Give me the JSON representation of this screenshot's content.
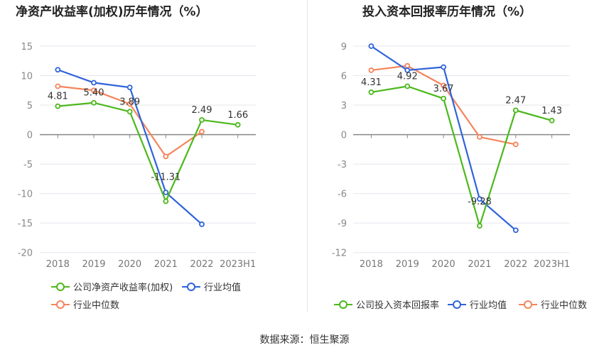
{
  "source": "数据来源：恒生聚源",
  "colors": {
    "company": "#4cb81c",
    "avg": "#2f63db",
    "median": "#f5845c"
  },
  "chart_data": [
    {
      "type": "line",
      "title": "净资产收益率(加权)历年情况（%）",
      "categories": [
        "2018",
        "2019",
        "2020",
        "2021",
        "2022",
        "2023H1"
      ],
      "ylim": [
        -20,
        15
      ],
      "yticks": [
        15,
        10,
        5,
        0,
        -5,
        -10,
        -15,
        -20
      ],
      "grid": true,
      "legend": "bottom",
      "series": [
        {
          "name": "公司净资产收益率(加权)",
          "key": "company",
          "values": [
            4.81,
            5.4,
            3.89,
            -11.31,
            2.49,
            1.66
          ],
          "labels": [
            "4.81",
            "5.40",
            "3.89",
            "-11.31",
            "2.49",
            "1.66"
          ]
        },
        {
          "name": "行业均值",
          "key": "avg",
          "values": [
            11.0,
            8.8,
            8.0,
            -9.8,
            -15.2,
            null
          ]
        },
        {
          "name": "行业中位数",
          "key": "median",
          "values": [
            8.2,
            7.5,
            5.2,
            -3.7,
            0.5,
            null
          ]
        }
      ]
    },
    {
      "type": "line",
      "title": "投入资本回报率历年情况（%）",
      "categories": [
        "2018",
        "2019",
        "2020",
        "2021",
        "2022",
        "2023H1"
      ],
      "ylim": [
        -12,
        9
      ],
      "yticks": [
        9,
        6,
        3,
        0,
        -3,
        -6,
        -9,
        -12
      ],
      "grid": true,
      "legend": "bottom",
      "series": [
        {
          "name": "公司投入资本回报率",
          "key": "company",
          "values": [
            4.31,
            4.92,
            3.67,
            -9.28,
            2.47,
            1.43
          ],
          "labels": [
            "4.31",
            "4.92",
            "3.67",
            "-9.28",
            "2.47",
            "1.43"
          ]
        },
        {
          "name": "行业均值",
          "key": "avg",
          "values": [
            9.0,
            6.55,
            6.87,
            -6.55,
            -9.73,
            null
          ]
        },
        {
          "name": "行业中位数",
          "key": "median",
          "values": [
            6.55,
            7.0,
            5.0,
            -0.24,
            -1.0,
            null
          ]
        }
      ]
    }
  ]
}
